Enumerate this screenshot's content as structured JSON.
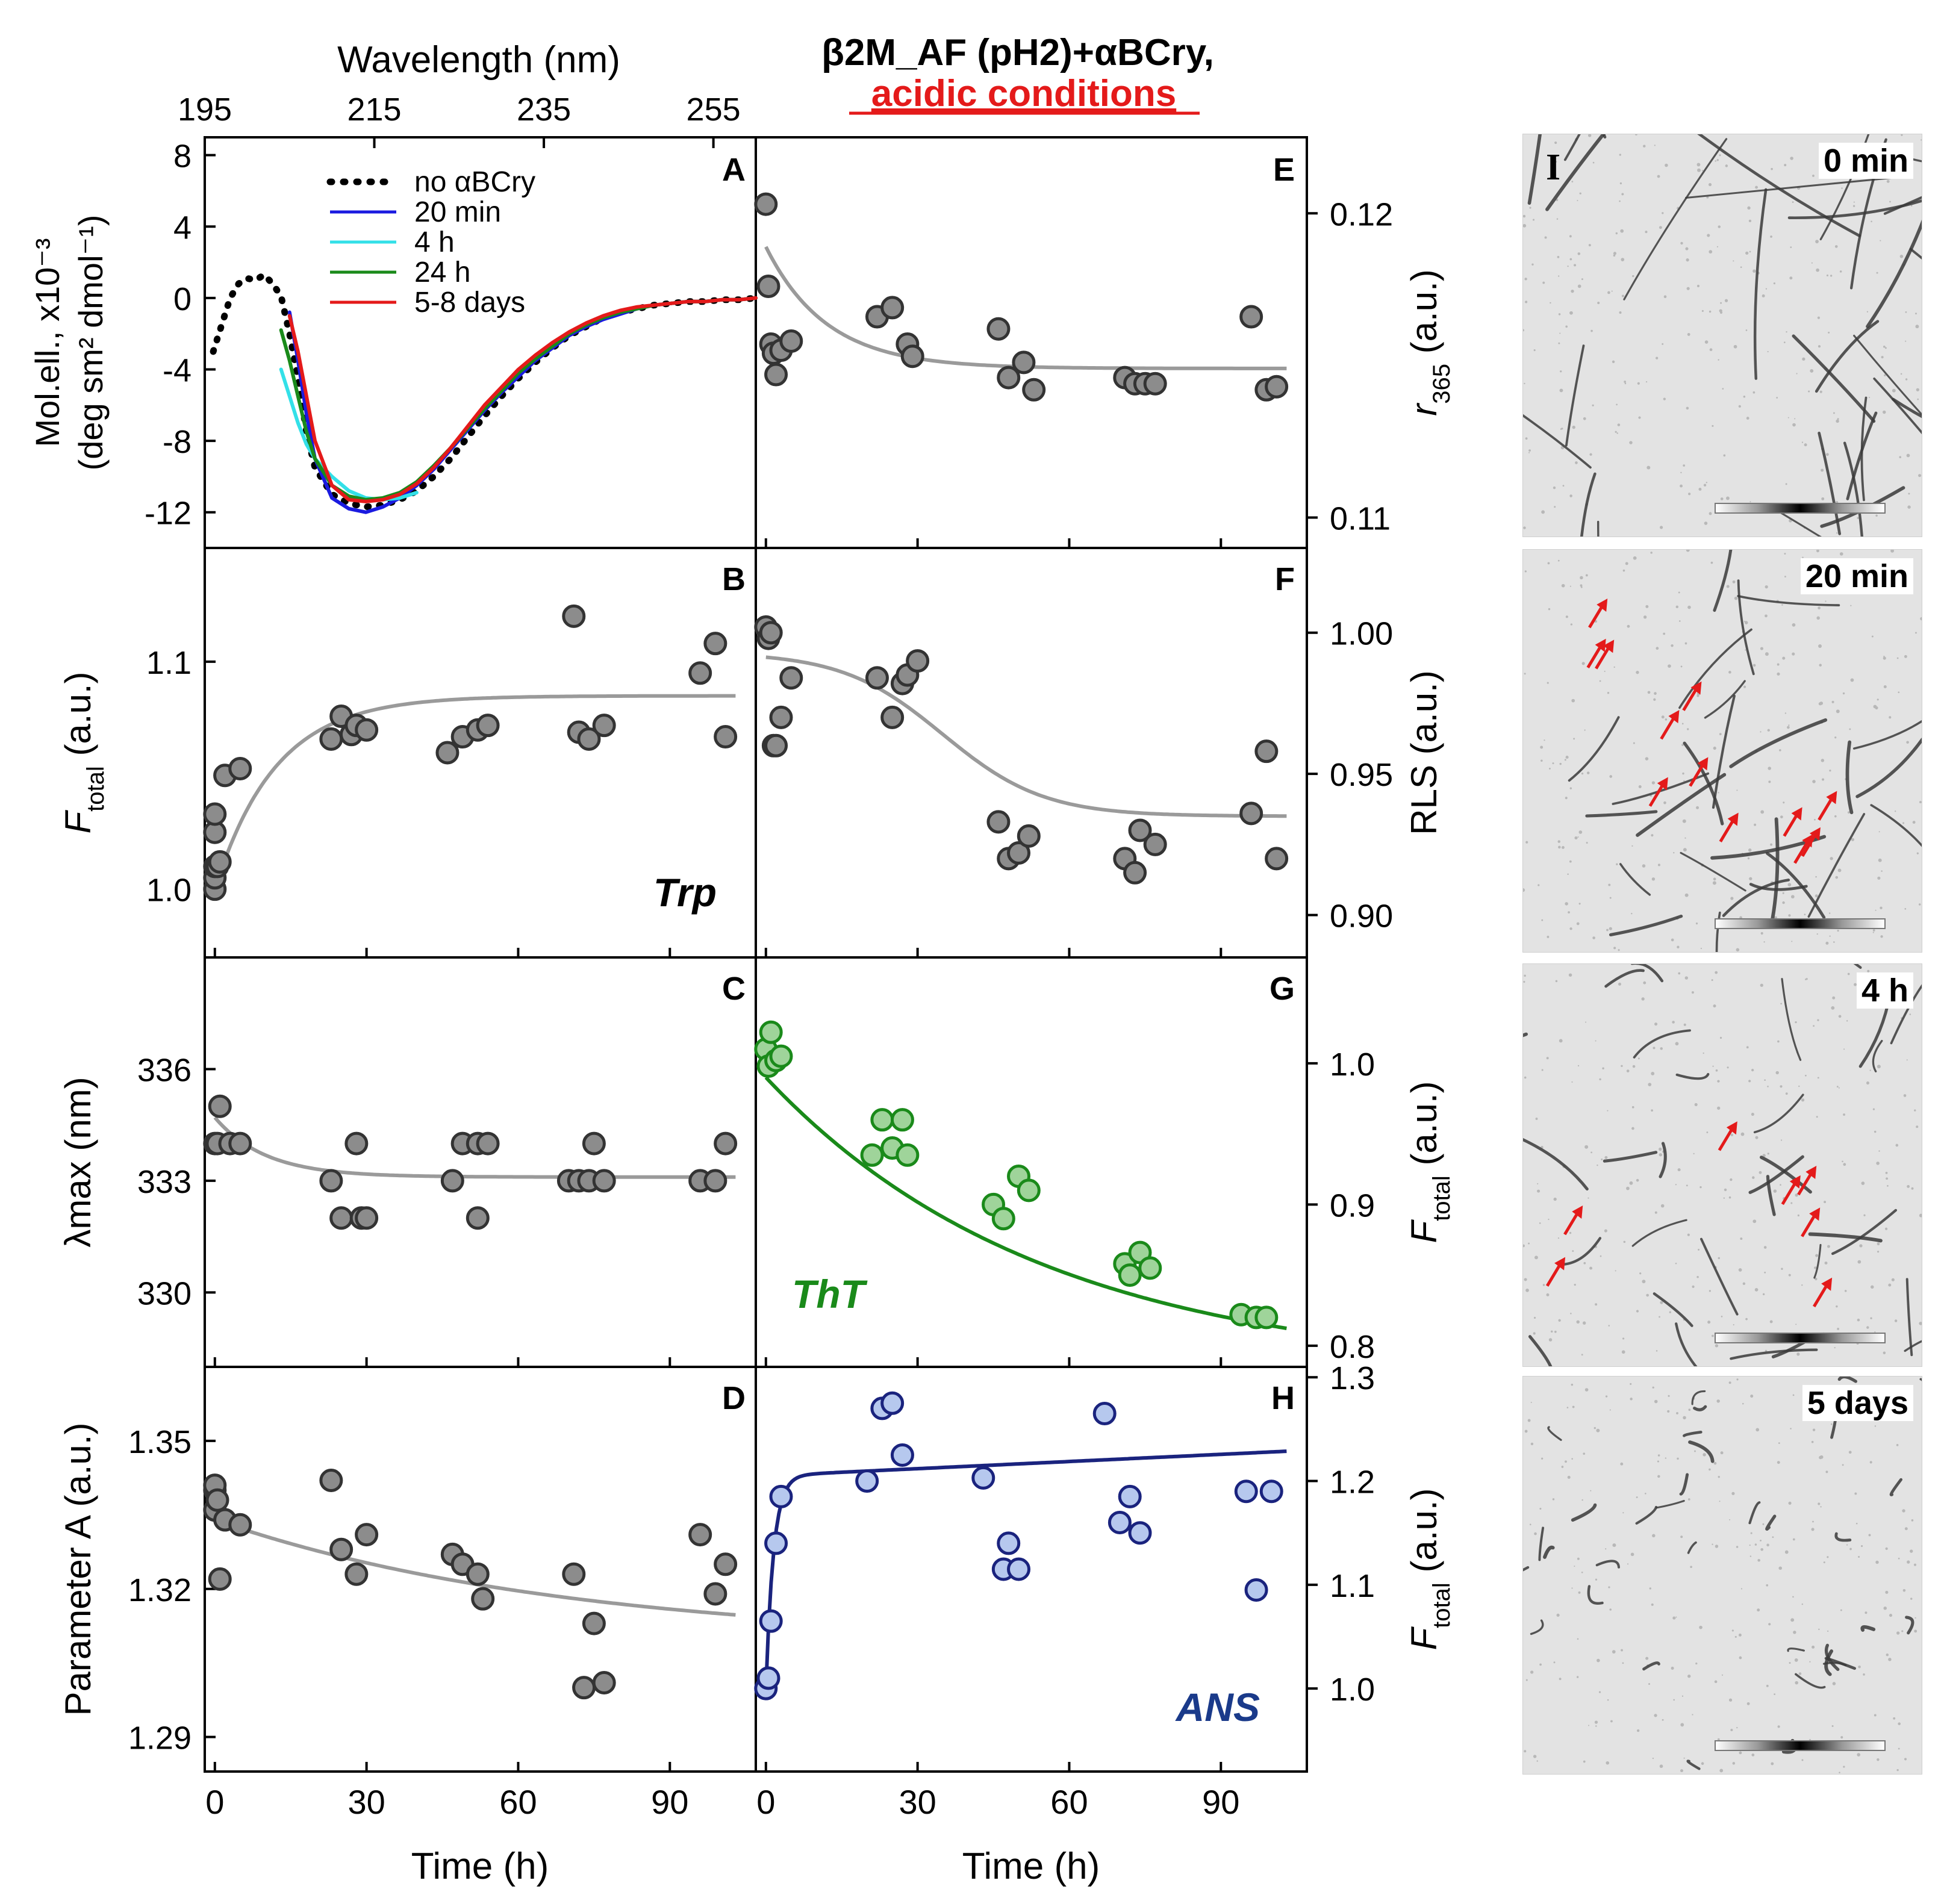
{
  "header": {
    "title_line1": "β2M_AF (pH2)+αBCry,",
    "title_line2": "acidic conditions",
    "title_line2_color": "#e41a1a",
    "wavelength_label": "Wavelength (nm)",
    "wavelength_ticks": [
      "195",
      "215",
      "235",
      "255"
    ]
  },
  "colors": {
    "marker_gray": "#8c8c8c",
    "fit_gray": "#9a9a9a",
    "tht_green": "#1a8a1a",
    "tht_fill": "#9fd49a",
    "ans_blue": "#1a237e",
    "ans_fill": "#b6c8ee",
    "arrow_red": "#e41a1a"
  },
  "chart_data": [
    {
      "id": "A",
      "type": "line",
      "title": "",
      "ylabel_line1": "Mol.ell., x10⁻³",
      "ylabel_line2": "(deg sm² dmol⁻¹)",
      "xlabel": "Wavelength (nm)",
      "xlim": [
        195,
        260
      ],
      "ylim": [
        -14,
        9
      ],
      "yticks": [
        8,
        4,
        0,
        -4,
        -8,
        -12
      ],
      "legend": [
        "no αBCry",
        "20 min",
        "4 h",
        "24 h",
        "5-8 days"
      ],
      "series": [
        {
          "name": "no αBCry",
          "color": "#000000",
          "style": "dotted",
          "x": [
            196,
            197,
            198,
            199,
            200,
            201,
            202,
            203,
            204,
            205,
            206,
            207,
            208,
            210,
            212,
            214,
            216,
            218,
            220,
            222,
            224,
            226,
            228,
            230,
            232,
            234,
            236,
            238,
            240,
            242,
            244,
            246,
            248,
            250,
            252,
            254,
            256,
            258,
            260
          ],
          "y": [
            -3.0,
            -1.5,
            0.0,
            0.8,
            1.1,
            1.0,
            1.3,
            0.8,
            0.1,
            -2.0,
            -4.5,
            -7.5,
            -9.5,
            -11.0,
            -11.5,
            -11.7,
            -11.6,
            -11.3,
            -10.8,
            -10.0,
            -9.0,
            -7.8,
            -6.6,
            -5.5,
            -4.5,
            -3.6,
            -2.8,
            -2.1,
            -1.6,
            -1.1,
            -0.8,
            -0.6,
            -0.4,
            -0.3,
            -0.2,
            -0.2,
            -0.1,
            -0.1,
            0.0
          ]
        },
        {
          "name": "20 min",
          "color": "#1a1ae0",
          "style": "solid",
          "x": [
            205,
            206,
            207,
            208,
            210,
            212,
            214,
            216,
            218,
            220,
            222,
            224,
            226,
            228,
            230,
            232,
            234,
            236,
            238,
            240,
            242,
            244,
            246,
            248,
            250,
            252,
            254,
            256,
            258,
            260
          ],
          "y": [
            -0.8,
            -3.5,
            -6.5,
            -9.0,
            -11.2,
            -11.8,
            -12.0,
            -11.7,
            -11.2,
            -10.5,
            -9.6,
            -8.5,
            -7.4,
            -6.3,
            -5.3,
            -4.4,
            -3.5,
            -2.8,
            -2.1,
            -1.6,
            -1.2,
            -0.9,
            -0.6,
            -0.4,
            -0.3,
            -0.2,
            -0.2,
            -0.1,
            -0.1,
            0.0
          ]
        },
        {
          "name": "4 h",
          "color": "#33e0e8",
          "style": "solid",
          "x": [
            204,
            205,
            206,
            207,
            208,
            209,
            210,
            212,
            214,
            216,
            218,
            220
          ],
          "y": [
            -4.0,
            -5.5,
            -7.0,
            -8.2,
            -9.0,
            -9.5,
            -10.0,
            -10.8,
            -11.2,
            -11.3,
            -11.2,
            -10.9
          ]
        },
        {
          "name": "24 h",
          "color": "#1a8a1a",
          "style": "solid",
          "x": [
            204,
            205,
            206,
            207,
            208,
            210,
            212,
            214,
            216,
            218,
            220,
            222,
            224,
            226,
            228,
            230,
            232,
            234,
            236,
            238,
            240,
            242,
            244,
            246,
            248,
            250,
            252,
            254,
            256,
            258,
            260
          ],
          "y": [
            -1.8,
            -3.5,
            -5.5,
            -7.5,
            -9.0,
            -10.5,
            -11.1,
            -11.3,
            -11.2,
            -10.9,
            -10.3,
            -9.4,
            -8.4,
            -7.3,
            -6.2,
            -5.2,
            -4.2,
            -3.4,
            -2.7,
            -2.0,
            -1.5,
            -1.1,
            -0.8,
            -0.6,
            -0.4,
            -0.3,
            -0.2,
            -0.2,
            -0.1,
            -0.1,
            0.0
          ]
        },
        {
          "name": "5-8 days",
          "color": "#e41a1a",
          "style": "solid",
          "x": [
            205,
            206,
            207,
            208,
            210,
            212,
            214,
            216,
            218,
            220,
            222,
            224,
            226,
            228,
            230,
            232,
            234,
            236,
            238,
            240,
            242,
            244,
            246,
            248,
            250,
            252,
            254,
            256,
            258,
            260
          ],
          "y": [
            -1.0,
            -3.0,
            -5.5,
            -8.0,
            -10.5,
            -11.3,
            -11.4,
            -11.3,
            -11.0,
            -10.4,
            -9.5,
            -8.4,
            -7.2,
            -6.0,
            -5.0,
            -4.0,
            -3.2,
            -2.5,
            -1.9,
            -1.4,
            -1.0,
            -0.7,
            -0.5,
            -0.4,
            -0.3,
            -0.2,
            -0.2,
            -0.1,
            -0.1,
            0.0
          ]
        }
      ]
    },
    {
      "id": "B",
      "type": "scatter",
      "annotation": "Trp",
      "ylabel_main": "F",
      "ylabel_sub": "total",
      "ylabel_rest": " (a.u.)",
      "xlim": [
        -2,
        107
      ],
      "ylim": [
        0.97,
        1.15
      ],
      "yticks": [
        "1.0",
        "1.1"
      ],
      "ytick_values": [
        1.0,
        1.1
      ],
      "x": [
        0,
        0,
        0,
        0,
        0,
        0.5,
        1,
        2,
        5,
        23,
        25,
        27,
        28,
        30,
        46,
        49,
        52,
        54,
        71,
        72,
        74,
        77,
        96,
        99,
        101
      ],
      "y": [
        1.0,
        1.005,
        1.01,
        1.025,
        1.033,
        1.01,
        1.012,
        1.05,
        1.053,
        1.066,
        1.076,
        1.068,
        1.072,
        1.07,
        1.06,
        1.067,
        1.07,
        1.072,
        1.12,
        1.069,
        1.066,
        1.072,
        1.095,
        1.108,
        1.067
      ],
      "fit": {
        "amplitude": 0.085,
        "base": 1.0,
        "tau": 12
      }
    },
    {
      "id": "C",
      "type": "scatter",
      "ylabel": "λmax (nm)",
      "xlim": [
        -2,
        107
      ],
      "ylim": [
        328,
        339
      ],
      "yticks": [
        "336",
        "333",
        "330"
      ],
      "ytick_values": [
        336,
        333,
        330
      ],
      "x": [
        0,
        0.5,
        1,
        3,
        5,
        23,
        25,
        28,
        29,
        30,
        47,
        49,
        52,
        52,
        54,
        70,
        72,
        74,
        75,
        77,
        96,
        99,
        101
      ],
      "y": [
        334,
        334,
        335,
        334,
        334,
        333,
        332,
        334,
        332,
        332,
        333,
        334,
        334,
        332,
        334,
        333,
        333,
        333,
        334,
        333,
        333,
        333,
        334
      ],
      "fit": {
        "amplitude": 1.6,
        "base": 333.1,
        "tau": 10
      }
    },
    {
      "id": "D",
      "type": "scatter",
      "ylabel": "Parameter A (a.u.)",
      "xlim": [
        -2,
        107
      ],
      "ylim": [
        1.283,
        1.365
      ],
      "yticks": [
        "1.35",
        "1.32",
        "1.29"
      ],
      "ytick_values": [
        1.35,
        1.32,
        1.29
      ],
      "x": [
        0,
        0,
        0,
        0.5,
        1,
        2,
        5,
        23,
        25,
        28,
        30,
        47,
        49,
        52,
        53,
        71,
        73,
        75,
        77,
        96,
        99,
        101
      ],
      "y": [
        1.336,
        1.34,
        1.341,
        1.338,
        1.322,
        1.334,
        1.333,
        1.342,
        1.328,
        1.323,
        1.331,
        1.327,
        1.325,
        1.323,
        1.318,
        1.323,
        1.3,
        1.313,
        1.301,
        1.331,
        1.319,
        1.325
      ],
      "fit": {
        "start": 1.334,
        "end": 1.309,
        "tau": 70
      }
    },
    {
      "id": "E",
      "type": "scatter",
      "ylabel_main": "r",
      "ylabel_sub": "365",
      "ylabel_rest": " (a.u.)",
      "xlim": [
        -2,
        107
      ],
      "ylim": [
        0.109,
        0.1225
      ],
      "yticks": [
        "0.12",
        "0.11"
      ],
      "ytick_values": [
        0.12,
        0.11
      ],
      "x": [
        0,
        0.5,
        1,
        1.5,
        2,
        3,
        5,
        22,
        25,
        28,
        29,
        46,
        48,
        51,
        53,
        71,
        73,
        75,
        77,
        96,
        99,
        101
      ],
      "y": [
        0.1203,
        0.1176,
        0.1157,
        0.1154,
        0.1147,
        0.1155,
        0.1158,
        0.1166,
        0.1169,
        0.1157,
        0.1153,
        0.1162,
        0.1146,
        0.1151,
        0.1142,
        0.1146,
        0.1144,
        0.1144,
        0.1144,
        0.1166,
        0.1142,
        0.1143
      ],
      "fit": {
        "amplitude": 0.004,
        "base": 0.1149,
        "tau": 12
      }
    },
    {
      "id": "F",
      "type": "scatter",
      "ylabel": "RLS (a.u.)",
      "xlim": [
        -2,
        107
      ],
      "ylim": [
        0.885,
        1.03
      ],
      "yticks": [
        "1.00",
        "0.95",
        "0.90"
      ],
      "ytick_values": [
        1.0,
        0.95,
        0.9
      ],
      "x": [
        0,
        0.5,
        1,
        1.5,
        2,
        3,
        5,
        22,
        25,
        27,
        28,
        30,
        46,
        48,
        50,
        52,
        71,
        73,
        74,
        77,
        96,
        99,
        101
      ],
      "y": [
        1.002,
        0.998,
        1.0,
        0.96,
        0.96,
        0.97,
        0.984,
        0.984,
        0.97,
        0.982,
        0.985,
        0.99,
        0.933,
        0.92,
        0.922,
        0.928,
        0.92,
        0.915,
        0.93,
        0.925,
        0.936,
        0.958,
        0.92
      ],
      "fit": {
        "high": 0.993,
        "low": 0.935,
        "mid": 35,
        "width": 10
      }
    },
    {
      "id": "G",
      "type": "scatter",
      "annotation": "ThT",
      "ylabel_main": "F",
      "ylabel_sub": "total",
      "ylabel_rest": " (a.u.)",
      "xlim": [
        -2,
        107
      ],
      "ylim": [
        0.785,
        1.075
      ],
      "yticks": [
        "1.0",
        "0.9",
        "0.8"
      ],
      "ytick_values": [
        1.0,
        0.9,
        0.8
      ],
      "x": [
        0,
        0.5,
        1,
        2,
        3,
        21,
        23,
        25,
        27,
        28,
        45,
        47,
        50,
        52,
        71,
        72,
        74,
        76,
        94,
        97,
        99
      ],
      "y": [
        1.01,
        0.998,
        1.022,
        1.002,
        1.005,
        0.935,
        0.96,
        0.94,
        0.96,
        0.935,
        0.9,
        0.89,
        0.92,
        0.91,
        0.858,
        0.85,
        0.866,
        0.855,
        0.822,
        0.82,
        0.82
      ],
      "fit": {
        "amplitude": 0.21,
        "base": 0.78,
        "tau": 55
      }
    },
    {
      "id": "H",
      "type": "scatter",
      "annotation": "ANS",
      "ylabel_main": "F",
      "ylabel_sub": "total",
      "ylabel_rest": " (a.u.)",
      "xlim": [
        -2,
        107
      ],
      "ylim": [
        0.92,
        1.31
      ],
      "yticks": [
        "1.3",
        "1.2",
        "1.1",
        "1.0"
      ],
      "ytick_values": [
        1.3,
        1.2,
        1.1,
        1.0
      ],
      "x": [
        0,
        0.5,
        1,
        2,
        3,
        20,
        23,
        25,
        27,
        43,
        47,
        48,
        50,
        67,
        70,
        72,
        74,
        95,
        97,
        100
      ],
      "y": [
        1.0,
        1.01,
        1.065,
        1.14,
        1.185,
        1.2,
        1.27,
        1.275,
        1.225,
        1.203,
        1.115,
        1.14,
        1.115,
        1.265,
        1.16,
        1.185,
        1.15,
        1.19,
        1.095,
        1.19
      ],
      "fit": {
        "base": 1.0,
        "amplitude": 0.205,
        "tau": 1.5,
        "slope": 0.00023
      }
    }
  ],
  "xaxis": {
    "ticks": [
      "0",
      "30",
      "60",
      "90"
    ],
    "tick_values": [
      0,
      30,
      60,
      90
    ],
    "label": "Time (h)"
  },
  "tem": {
    "panel_label": "I",
    "labels": [
      "0 min",
      "20 min",
      "4 h",
      "5 days"
    ]
  }
}
